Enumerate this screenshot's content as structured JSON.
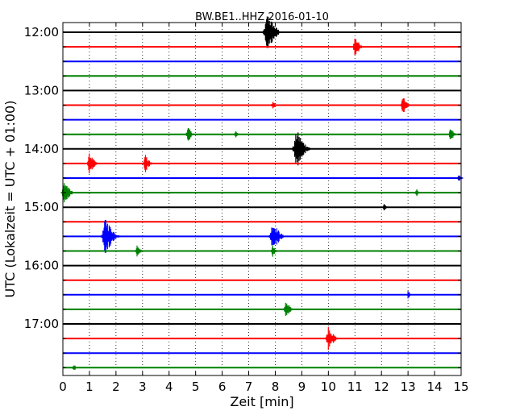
{
  "chart_data": {
    "type": "line",
    "title": "BW.BE1..HHZ 2016-01-10",
    "xlabel": "Zeit  [min]",
    "ylabel": "UTC (Lokalzeit = UTC + 01:00)",
    "xlim": [
      0,
      15
    ],
    "x_ticks": [
      "0",
      "1",
      "2",
      "3",
      "4",
      "5",
      "6",
      "7",
      "8",
      "9",
      "10",
      "11",
      "12",
      "13",
      "14",
      "15"
    ],
    "y_ticks": [
      "12:00",
      "13:00",
      "14:00",
      "15:00",
      "16:00",
      "17:00"
    ],
    "grid": "vertical dotted",
    "trace_interval_minutes": 15,
    "traces": [
      {
        "start": "12:00",
        "color": "#000000",
        "events": [
          {
            "t": 7.7,
            "amp": 1.0
          }
        ]
      },
      {
        "start": "12:15",
        "color": "#ff0000",
        "events": [
          {
            "t": 11.0,
            "amp": 0.5
          }
        ]
      },
      {
        "start": "12:30",
        "color": "#0000ff",
        "events": []
      },
      {
        "start": "12:45",
        "color": "#008000",
        "events": []
      },
      {
        "start": "13:00",
        "color": "#000000",
        "events": []
      },
      {
        "start": "13:15",
        "color": "#ff0000",
        "events": [
          {
            "t": 7.9,
            "amp": 0.15
          },
          {
            "t": 12.8,
            "amp": 0.4
          }
        ]
      },
      {
        "start": "13:30",
        "color": "#0000ff",
        "events": []
      },
      {
        "start": "13:45",
        "color": "#008000",
        "events": [
          {
            "t": 4.7,
            "amp": 0.35
          },
          {
            "t": 6.5,
            "amp": 0.12
          },
          {
            "t": 14.6,
            "amp": 0.3
          }
        ]
      },
      {
        "start": "14:00",
        "color": "#000000",
        "events": [
          {
            "t": 8.8,
            "amp": 1.0
          }
        ]
      },
      {
        "start": "14:15",
        "color": "#ff0000",
        "events": [
          {
            "t": 1.0,
            "amp": 0.5
          },
          {
            "t": 3.1,
            "amp": 0.4
          }
        ]
      },
      {
        "start": "14:30",
        "color": "#0000ff",
        "events": [
          {
            "t": 14.9,
            "amp": 0.15
          }
        ]
      },
      {
        "start": "14:45",
        "color": "#008000",
        "events": [
          {
            "t": 0.05,
            "amp": 0.6
          },
          {
            "t": 13.3,
            "amp": 0.15
          }
        ]
      },
      {
        "start": "15:00",
        "color": "#000000",
        "events": [
          {
            "t": 12.1,
            "amp": 0.1
          }
        ]
      },
      {
        "start": "15:15",
        "color": "#ff0000",
        "events": []
      },
      {
        "start": "15:30",
        "color": "#0000ff",
        "events": [
          {
            "t": 1.6,
            "amp": 1.0
          },
          {
            "t": 7.9,
            "amp": 0.8
          }
        ]
      },
      {
        "start": "15:45",
        "color": "#008000",
        "events": [
          {
            "t": 2.8,
            "amp": 0.25
          },
          {
            "t": 7.9,
            "amp": 0.2
          }
        ]
      },
      {
        "start": "16:00",
        "color": "#000000",
        "events": []
      },
      {
        "start": "16:15",
        "color": "#ff0000",
        "events": []
      },
      {
        "start": "16:30",
        "color": "#0000ff",
        "events": [
          {
            "t": 13.0,
            "amp": 0.1
          }
        ]
      },
      {
        "start": "16:45",
        "color": "#008000",
        "events": [
          {
            "t": 8.4,
            "amp": 0.4
          }
        ]
      },
      {
        "start": "17:00",
        "color": "#000000",
        "events": []
      },
      {
        "start": "17:15",
        "color": "#ff0000",
        "events": [
          {
            "t": 10.0,
            "amp": 0.6
          }
        ]
      },
      {
        "start": "17:30",
        "color": "#0000ff",
        "events": []
      },
      {
        "start": "17:45",
        "color": "#008000",
        "events": [
          {
            "t": 0.4,
            "amp": 0.12
          }
        ]
      }
    ]
  }
}
